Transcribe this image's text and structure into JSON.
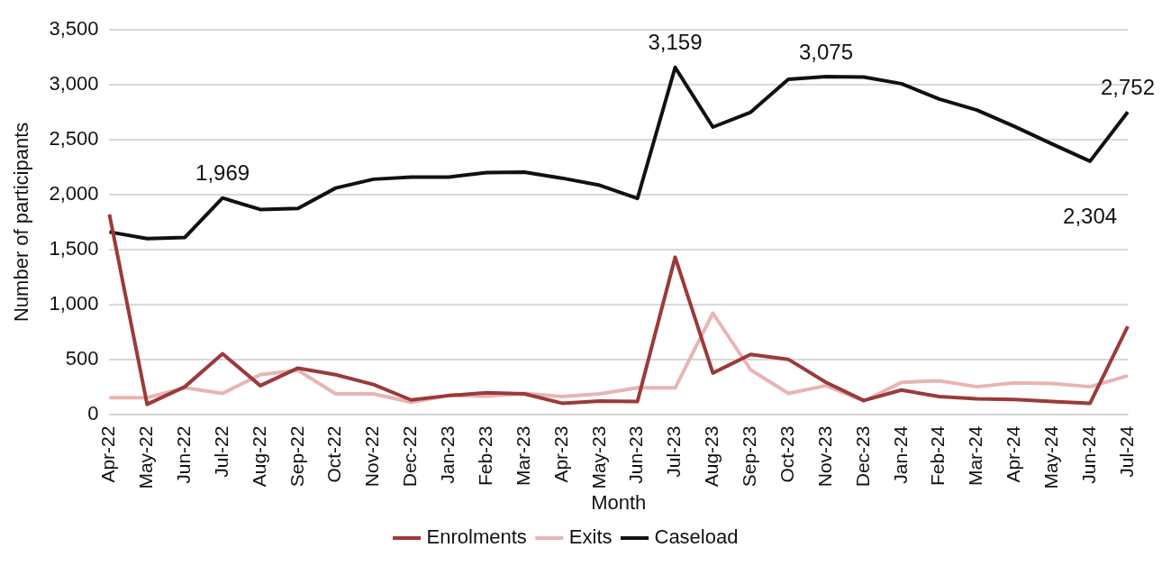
{
  "chart_data": {
    "type": "line",
    "xlabel": "Month",
    "ylabel": "Number of participants",
    "categories": [
      "Apr-22",
      "May-22",
      "Jun-22",
      "Jul-22",
      "Aug-22",
      "Sep-22",
      "Oct-22",
      "Nov-22",
      "Dec-22",
      "Jan-23",
      "Feb-23",
      "Mar-23",
      "Apr-23",
      "May-23",
      "Jun-23",
      "Jul-23",
      "Aug-23",
      "Sep-23",
      "Oct-23",
      "Nov-23",
      "Dec-23",
      "Jan-24",
      "Feb-24",
      "Mar-24",
      "Apr-24",
      "May-24",
      "Jun-24",
      "Jul-24"
    ],
    "series": [
      {
        "name": "Enrolments",
        "color": "#9b3a3a",
        "values": [
          1820,
          90,
          250,
          550,
          260,
          420,
          360,
          270,
          130,
          170,
          195,
          185,
          100,
          120,
          115,
          1430,
          375,
          545,
          500,
          290,
          125,
          220,
          160,
          140,
          135,
          115,
          100,
          800
        ]
      },
      {
        "name": "Exits",
        "color": "#e8b4b4",
        "values": [
          150,
          150,
          240,
          190,
          360,
          400,
          185,
          185,
          110,
          170,
          165,
          190,
          160,
          185,
          240,
          240,
          920,
          405,
          190,
          260,
          120,
          290,
          305,
          250,
          285,
          280,
          250,
          350
        ]
      },
      {
        "name": "Caseload",
        "color": "#111111",
        "values": [
          1660,
          1600,
          1610,
          1969,
          1865,
          1875,
          2060,
          2140,
          2160,
          2160,
          2200,
          2205,
          2150,
          2085,
          1965,
          3159,
          2615,
          2750,
          3050,
          3075,
          3070,
          3010,
          2870,
          2770,
          2620,
          2460,
          2304,
          2752
        ],
        "value_labels": [
          null,
          null,
          null,
          "1,969",
          null,
          null,
          null,
          null,
          null,
          null,
          null,
          null,
          null,
          null,
          null,
          "3,159",
          null,
          null,
          null,
          "3,075",
          null,
          null,
          null,
          null,
          null,
          null,
          "2,304",
          "2,752"
        ]
      }
    ],
    "ylim": [
      0,
      3500
    ],
    "yticks": [
      0,
      500,
      {
        "value": 1000,
        "label": "1,000"
      },
      {
        "value": 1500,
        "label": "1,500"
      },
      {
        "value": 2000,
        "label": "2,000"
      },
      {
        "value": 2500,
        "label": "2,500"
      },
      {
        "value": 3000,
        "label": "3,000"
      },
      {
        "value": 3500,
        "label": "3,500"
      }
    ],
    "grid": "y",
    "legend": "bottom",
    "marker": "none",
    "line_style": "solid"
  }
}
